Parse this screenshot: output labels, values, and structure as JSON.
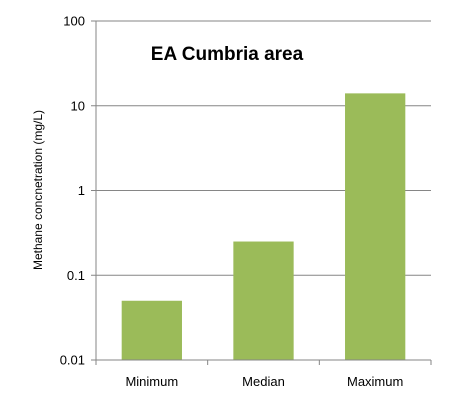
{
  "chart_data": {
    "type": "bar",
    "title": "EA Cumbria area",
    "xlabel": "",
    "ylabel": "Methane  concnetration (mg/L)",
    "yscale": "log",
    "ylim": [
      0.01,
      100
    ],
    "yticks": [
      {
        "value": 0.01,
        "label": "0.01"
      },
      {
        "value": 0.1,
        "label": "0.1"
      },
      {
        "value": 1,
        "label": "1"
      },
      {
        "value": 10,
        "label": "10"
      },
      {
        "value": 100,
        "label": "100"
      }
    ],
    "categories": [
      "Minimum",
      "Median",
      "Maximum"
    ],
    "values": [
      0.05,
      0.25,
      14
    ],
    "bar_color": "#9BBB59",
    "grid": true,
    "legend": "none"
  }
}
